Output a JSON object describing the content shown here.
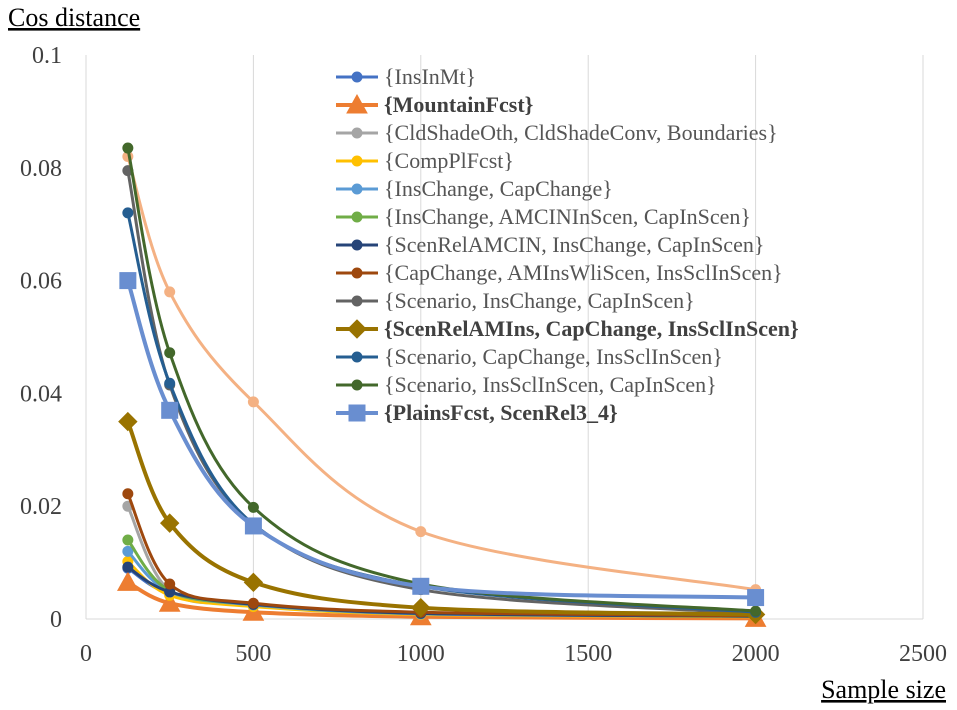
{
  "chart_data": {
    "type": "line",
    "ylabel": "Cos distance",
    "xlabel": "Sample size",
    "xlim": [
      0,
      2500
    ],
    "ylim": [
      0,
      0.1
    ],
    "xticks": [
      0,
      500,
      1000,
      1500,
      2000,
      2500
    ],
    "yticks": [
      0,
      0.02,
      0.04,
      0.06,
      0.08,
      0.1
    ],
    "xtick_labels": [
      "0",
      "500",
      "1000",
      "1500",
      "2000",
      "2500"
    ],
    "ytick_labels": [
      "0",
      "0.02",
      "0.04",
      "0.06",
      "0.08",
      "0.1"
    ],
    "grid": "vertical",
    "legend_position": "top-right",
    "x": [
      125,
      250,
      500,
      1000,
      2000
    ],
    "series": [
      {
        "name": "{InsInMt}",
        "color": "#4472C4",
        "marker": "circle",
        "bold": false,
        "values": [
          0.009,
          0.0045,
          0.0025,
          0.0008,
          0.0004
        ]
      },
      {
        "name": "{MountainFcst}",
        "color": "#ED7D31",
        "marker": "triangle",
        "bold": true,
        "values": [
          0.0065,
          0.0028,
          0.0012,
          0.0004,
          0.0001
        ]
      },
      {
        "name": "{CldShadeOth, CldShadeConv, Boundaries}",
        "color": "#A5A5A5",
        "marker": "circle",
        "bold": false,
        "values": [
          0.02,
          0.005,
          0.0025,
          0.001,
          0.0005
        ]
      },
      {
        "name": "{CompPlFcst}",
        "color": "#FFC000",
        "marker": "circle",
        "bold": false,
        "values": [
          0.0102,
          0.0042,
          0.0022,
          0.0008,
          0.0004
        ]
      },
      {
        "name": "{InsChange, CapChange}",
        "color": "#5B9BD5",
        "marker": "circle",
        "bold": false,
        "values": [
          0.012,
          0.0048,
          0.0025,
          0.0009,
          0.0005
        ]
      },
      {
        "name": "{InsChange, AMCINInScen, CapInScen}",
        "color": "#70AD47",
        "marker": "circle",
        "bold": false,
        "values": [
          0.014,
          0.005,
          0.0026,
          0.001,
          0.0005
        ]
      },
      {
        "name": "{ScenRelAMCIN, InsChange, CapInScen}",
        "color": "#264478",
        "marker": "circle",
        "bold": false,
        "values": [
          0.0092,
          0.0048,
          0.0026,
          0.001,
          0.0005
        ]
      },
      {
        "name": "{CapChange, AMInsWliScen, InsSclInScen}",
        "color": "#9E480E",
        "marker": "circle",
        "bold": false,
        "values": [
          0.0222,
          0.0062,
          0.0028,
          0.0012,
          0.0006
        ]
      },
      {
        "name": "{Scenario, InsChange, CapInScen}",
        "color": "#636363",
        "marker": "circle",
        "bold": false,
        "values": [
          0.0795,
          0.0415,
          0.0168,
          0.0052,
          0.001
        ]
      },
      {
        "name": "{ScenRelAMIns, CapChange, InsSclInScen}",
        "color": "#997300",
        "marker": "diamond",
        "bold": true,
        "values": [
          0.035,
          0.017,
          0.0065,
          0.002,
          0.0008
        ]
      },
      {
        "name": "{Scenario, CapChange, InsSclInScen}",
        "color": "#255E91",
        "marker": "circle",
        "bold": false,
        "values": [
          0.072,
          0.0418,
          0.0168,
          0.0058,
          0.0012
        ]
      },
      {
        "name": "{Scenario, InsSclInScen, CapInScen}",
        "color": "#43682B",
        "marker": "circle",
        "bold": false,
        "values": [
          0.0835,
          0.0472,
          0.0198,
          0.0062,
          0.0014
        ]
      },
      {
        "name": "{PlainsFcst, ScenRel3_4}",
        "color": "#698ED0",
        "marker": "square",
        "bold": true,
        "values": [
          0.06,
          0.037,
          0.0165,
          0.0058,
          0.0038
        ]
      },
      {
        "name": "{MountainFcst} (upper)",
        "color": "#F4B183",
        "marker": "circle",
        "bold": false,
        "legend": false,
        "values": [
          0.082,
          0.058,
          0.0385,
          0.0155,
          0.0052
        ]
      }
    ]
  }
}
